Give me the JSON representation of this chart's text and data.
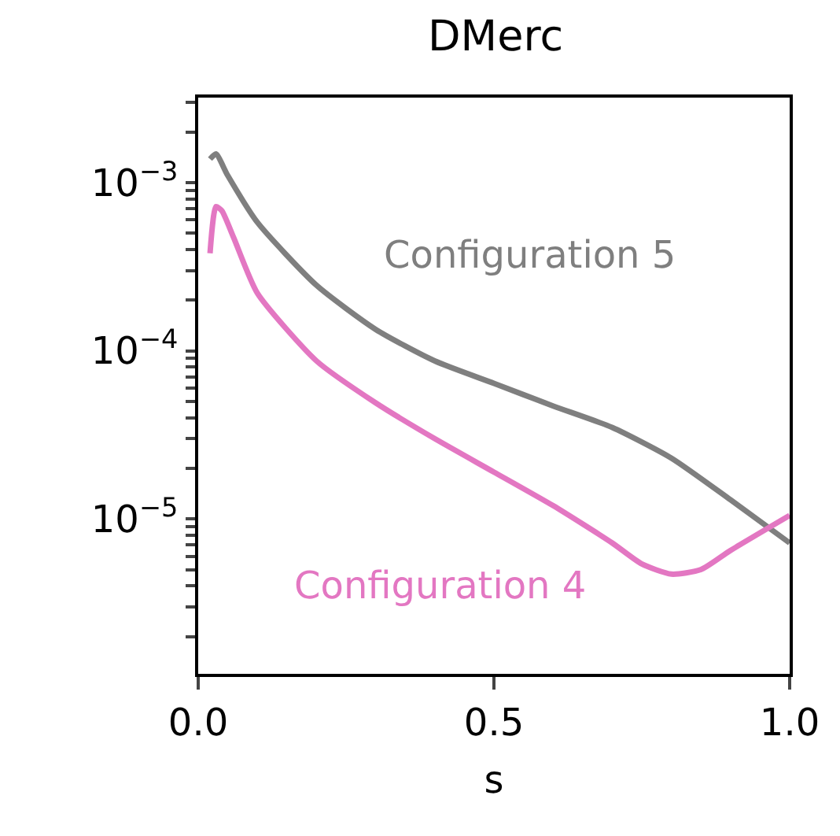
{
  "chart_data": {
    "type": "line",
    "title": "DMerc",
    "xlabel": "s",
    "series": [
      {
        "name": "Configuration 5",
        "color": "#7f7f7f",
        "x": [
          0.02,
          0.03,
          0.05,
          0.1,
          0.2,
          0.3,
          0.4,
          0.5,
          0.6,
          0.7,
          0.8,
          0.9,
          1.0
        ],
        "values": [
          0.00138,
          0.00148,
          0.0011,
          0.00058,
          0.000245,
          0.000134,
          8.7e-05,
          6.4e-05,
          4.7e-05,
          3.5e-05,
          2.3e-05,
          1.3e-05,
          7.2e-06
        ]
      },
      {
        "name": "Configuration 4",
        "color": "#e377c2",
        "x": [
          0.02,
          0.03,
          0.04,
          0.06,
          0.1,
          0.2,
          0.3,
          0.4,
          0.5,
          0.6,
          0.7,
          0.75,
          0.8,
          0.85,
          0.9,
          1.0
        ],
        "values": [
          0.00038,
          0.00072,
          0.00068,
          0.00047,
          0.00022,
          8.7e-05,
          4.9e-05,
          3e-05,
          1.9e-05,
          1.2e-05,
          7.2e-06,
          5.4e-06,
          4.7e-06,
          5e-06,
          6.5e-06,
          1.05e-05
        ]
      }
    ],
    "xlim": [
      0.0,
      1.0
    ],
    "xticks": [
      {
        "value": 0.0,
        "label": "0.0"
      },
      0.5,
      {
        "value": 1.0,
        "label": "1.0"
      }
    ],
    "ylim": [
      1.2e-06,
      0.0032
    ],
    "log": "y",
    "yticks": [
      {
        "value": 0.001,
        "label": "10$^{−3}$"
      },
      {
        "value": 0.0001,
        "label": "10$^{−4}$"
      },
      {
        "value": 1e-05,
        "label": "10$^{−5}$"
      },
      {
        "value": 2e-06,
        "label": null
      },
      {
        "value": 3e-06,
        "label": null
      },
      {
        "value": 4e-06,
        "label": null
      },
      {
        "value": 5e-06,
        "label": null
      },
      {
        "value": 6e-06,
        "label": null
      },
      {
        "value": 7e-06,
        "label": null
      },
      {
        "value": 8e-06,
        "label": null
      },
      {
        "value": 9e-06,
        "label": null
      },
      {
        "value": 2e-05,
        "label": null
      },
      {
        "value": 3e-05,
        "label": null
      },
      {
        "value": 4e-05,
        "label": null
      },
      {
        "value": 5e-05,
        "label": null
      },
      {
        "value": 6e-05,
        "label": null
      },
      {
        "value": 7e-05,
        "label": null
      },
      {
        "value": 8e-05,
        "label": null
      },
      {
        "value": 9e-05,
        "label": null
      },
      {
        "value": 0.0002,
        "label": null
      },
      {
        "value": 0.0003,
        "label": null
      },
      {
        "value": 0.0004,
        "label": null
      },
      {
        "value": 0.0005,
        "label": null
      },
      {
        "value": 0.0006,
        "label": null
      },
      {
        "value": 0.0007,
        "label": null
      },
      {
        "value": 0.0008,
        "label": null
      },
      {
        "value": 0.0009,
        "label": null
      },
      {
        "value": 0.002,
        "label": null
      },
      {
        "value": 0.003,
        "label": null
      }
    ],
    "grid": false,
    "legend": false,
    "marker": "none",
    "line_style": "solid"
  }
}
